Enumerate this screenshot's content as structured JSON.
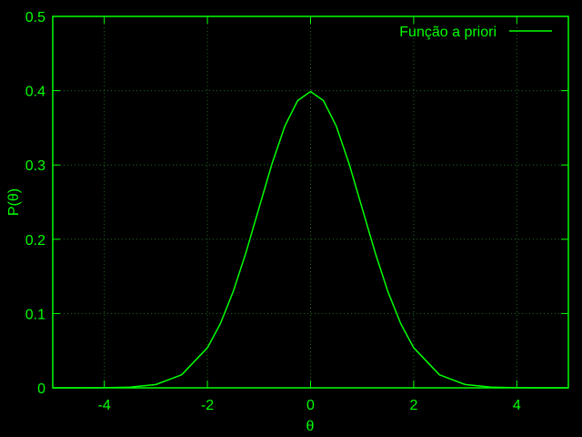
{
  "colors": {
    "background": "#000000",
    "foreground": "#00ff00",
    "grid": "#1f6f1f"
  },
  "chart_data": {
    "type": "line",
    "title": "",
    "xlabel": "θ",
    "ylabel": "P(θ)",
    "xlim": [
      -5,
      5
    ],
    "ylim": [
      0,
      0.5
    ],
    "xticks": [
      -4,
      -2,
      0,
      2,
      4
    ],
    "yticks": [
      0,
      0.1,
      0.2,
      0.3,
      0.4,
      0.5
    ],
    "xtick_labels": [
      "-4",
      "-2",
      "0",
      "2",
      "4"
    ],
    "ytick_labels": [
      "0",
      "0.1",
      "0.2",
      "0.3",
      "0.4",
      "0.5"
    ],
    "grid": true,
    "legend_position": "top-right",
    "series": [
      {
        "name": "Função a priori",
        "x": [
          -5,
          -4.5,
          -4,
          -3.5,
          -3,
          -2.5,
          -2,
          -1.75,
          -1.5,
          -1.25,
          -1,
          -0.75,
          -0.5,
          -0.25,
          0,
          0.25,
          0.5,
          0.75,
          1,
          1.25,
          1.5,
          1.75,
          2,
          2.5,
          3,
          3.5,
          4,
          4.5,
          5
        ],
        "y": [
          1.5e-06,
          1.6e-05,
          0.000134,
          0.000873,
          0.004432,
          0.017528,
          0.053991,
          0.086277,
          0.129518,
          0.182649,
          0.241971,
          0.301137,
          0.352065,
          0.386668,
          0.398942,
          0.386668,
          0.352065,
          0.301137,
          0.241971,
          0.182649,
          0.129518,
          0.086277,
          0.053991,
          0.017528,
          0.004432,
          0.000873,
          0.000134,
          1.6e-05,
          1.5e-06
        ]
      }
    ]
  }
}
